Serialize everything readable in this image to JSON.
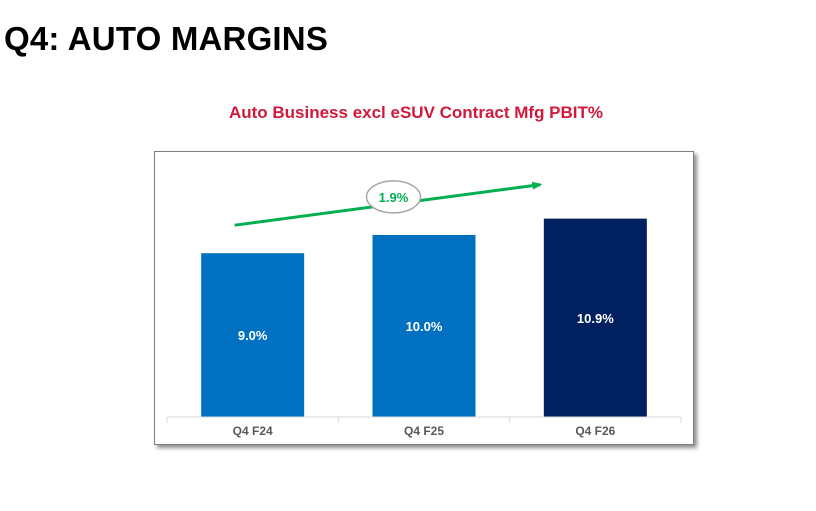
{
  "page": {
    "title": "Q4: AUTO MARGINS"
  },
  "chart_data": {
    "type": "bar",
    "title": "Auto Business excl eSUV Contract Mfg PBIT%",
    "categories": [
      "Q4 F24",
      "Q4 F25",
      "Q4 F26"
    ],
    "values": [
      9.0,
      10.0,
      10.9
    ],
    "value_labels": [
      "9.0%",
      "10.0%",
      "10.9%"
    ],
    "bar_colors": [
      "#0070c0",
      "#0070c0",
      "#002060"
    ],
    "ylim": [
      0,
      12
    ],
    "grid": false,
    "annotation": {
      "label": "1.9%",
      "type": "trend-arrow",
      "color": "#00b050"
    }
  }
}
